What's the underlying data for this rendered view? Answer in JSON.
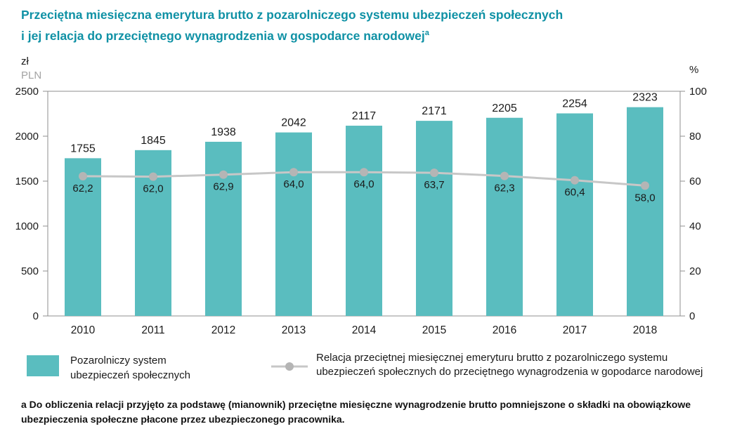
{
  "title": {
    "line1": "Przeciętna miesięczna emerytura brutto z pozarolniczego systemu ubezpieczeń społecznych",
    "line2": "i jej relacja do przeciętnego wynagrodzenia w gospodarce narodowej",
    "sup": "a"
  },
  "axes": {
    "left_unit_line1": "zł",
    "left_unit_line2": "PLN",
    "right_unit": "%"
  },
  "legend": {
    "bars_label": "Pozarolniczy system ubezpieczeń społecznych",
    "line_label": "Relacja przeciętnej miesięcznej emeryturu brutto z pozarolniczego systemu ubezpieczeń społecznych do przeciętnego wynagrodzenia w gopodarce narodowej"
  },
  "footnote": "a Do obliczenia relacji przyjęto za podstawę (mianownik) przeciętne miesięczne wynagrodzenie brutto pomniejszone o składki na obowiązkowe ubezpieczenia społeczne płacone przez ubezpieczonego pracownika.",
  "colors": {
    "title": "#0f91a5",
    "bar": "#5abdbf",
    "line": "#c7c7c7",
    "marker": "#b5b5b5",
    "axis": "#8f8f8f",
    "text": "#1a1a1a",
    "muted": "#a3a3a3"
  },
  "chart_data": {
    "type": "bar+line",
    "categories": [
      "2010",
      "2011",
      "2012",
      "2013",
      "2014",
      "2015",
      "2016",
      "2017",
      "2018"
    ],
    "series": [
      {
        "name": "Pozarolniczy system ubezpieczeń społecznych",
        "type": "bar",
        "axis": "left",
        "values": [
          1755,
          1845,
          1938,
          2042,
          2117,
          2171,
          2205,
          2254,
          2323
        ],
        "labels": [
          "1755",
          "1845",
          "1938",
          "2042",
          "2117",
          "2171",
          "2205",
          "2254",
          "2323"
        ]
      },
      {
        "name": "Relacja przeciętnej miesięcznej emeryturu brutto z pozarolniczego systemu ubezpieczeń społecznych do przeciętnego wynagrodzenia w gopodarce narodowej",
        "type": "line",
        "axis": "right",
        "values": [
          62.2,
          62.0,
          62.9,
          64.0,
          64.0,
          63.7,
          62.3,
          60.4,
          58.0
        ],
        "labels": [
          "62,2",
          "62,0",
          "62,9",
          "64,0",
          "64,0",
          "63,7",
          "62,3",
          "60,4",
          "58,0"
        ]
      }
    ],
    "left_axis": {
      "label": "zł PLN",
      "min": 0,
      "max": 2500,
      "ticks": [
        0,
        500,
        1000,
        1500,
        2000,
        2500
      ]
    },
    "right_axis": {
      "label": "%",
      "min": 0,
      "max": 100,
      "ticks": [
        0,
        20,
        40,
        60,
        80,
        100
      ]
    },
    "grid": false,
    "legend_position": "bottom"
  }
}
